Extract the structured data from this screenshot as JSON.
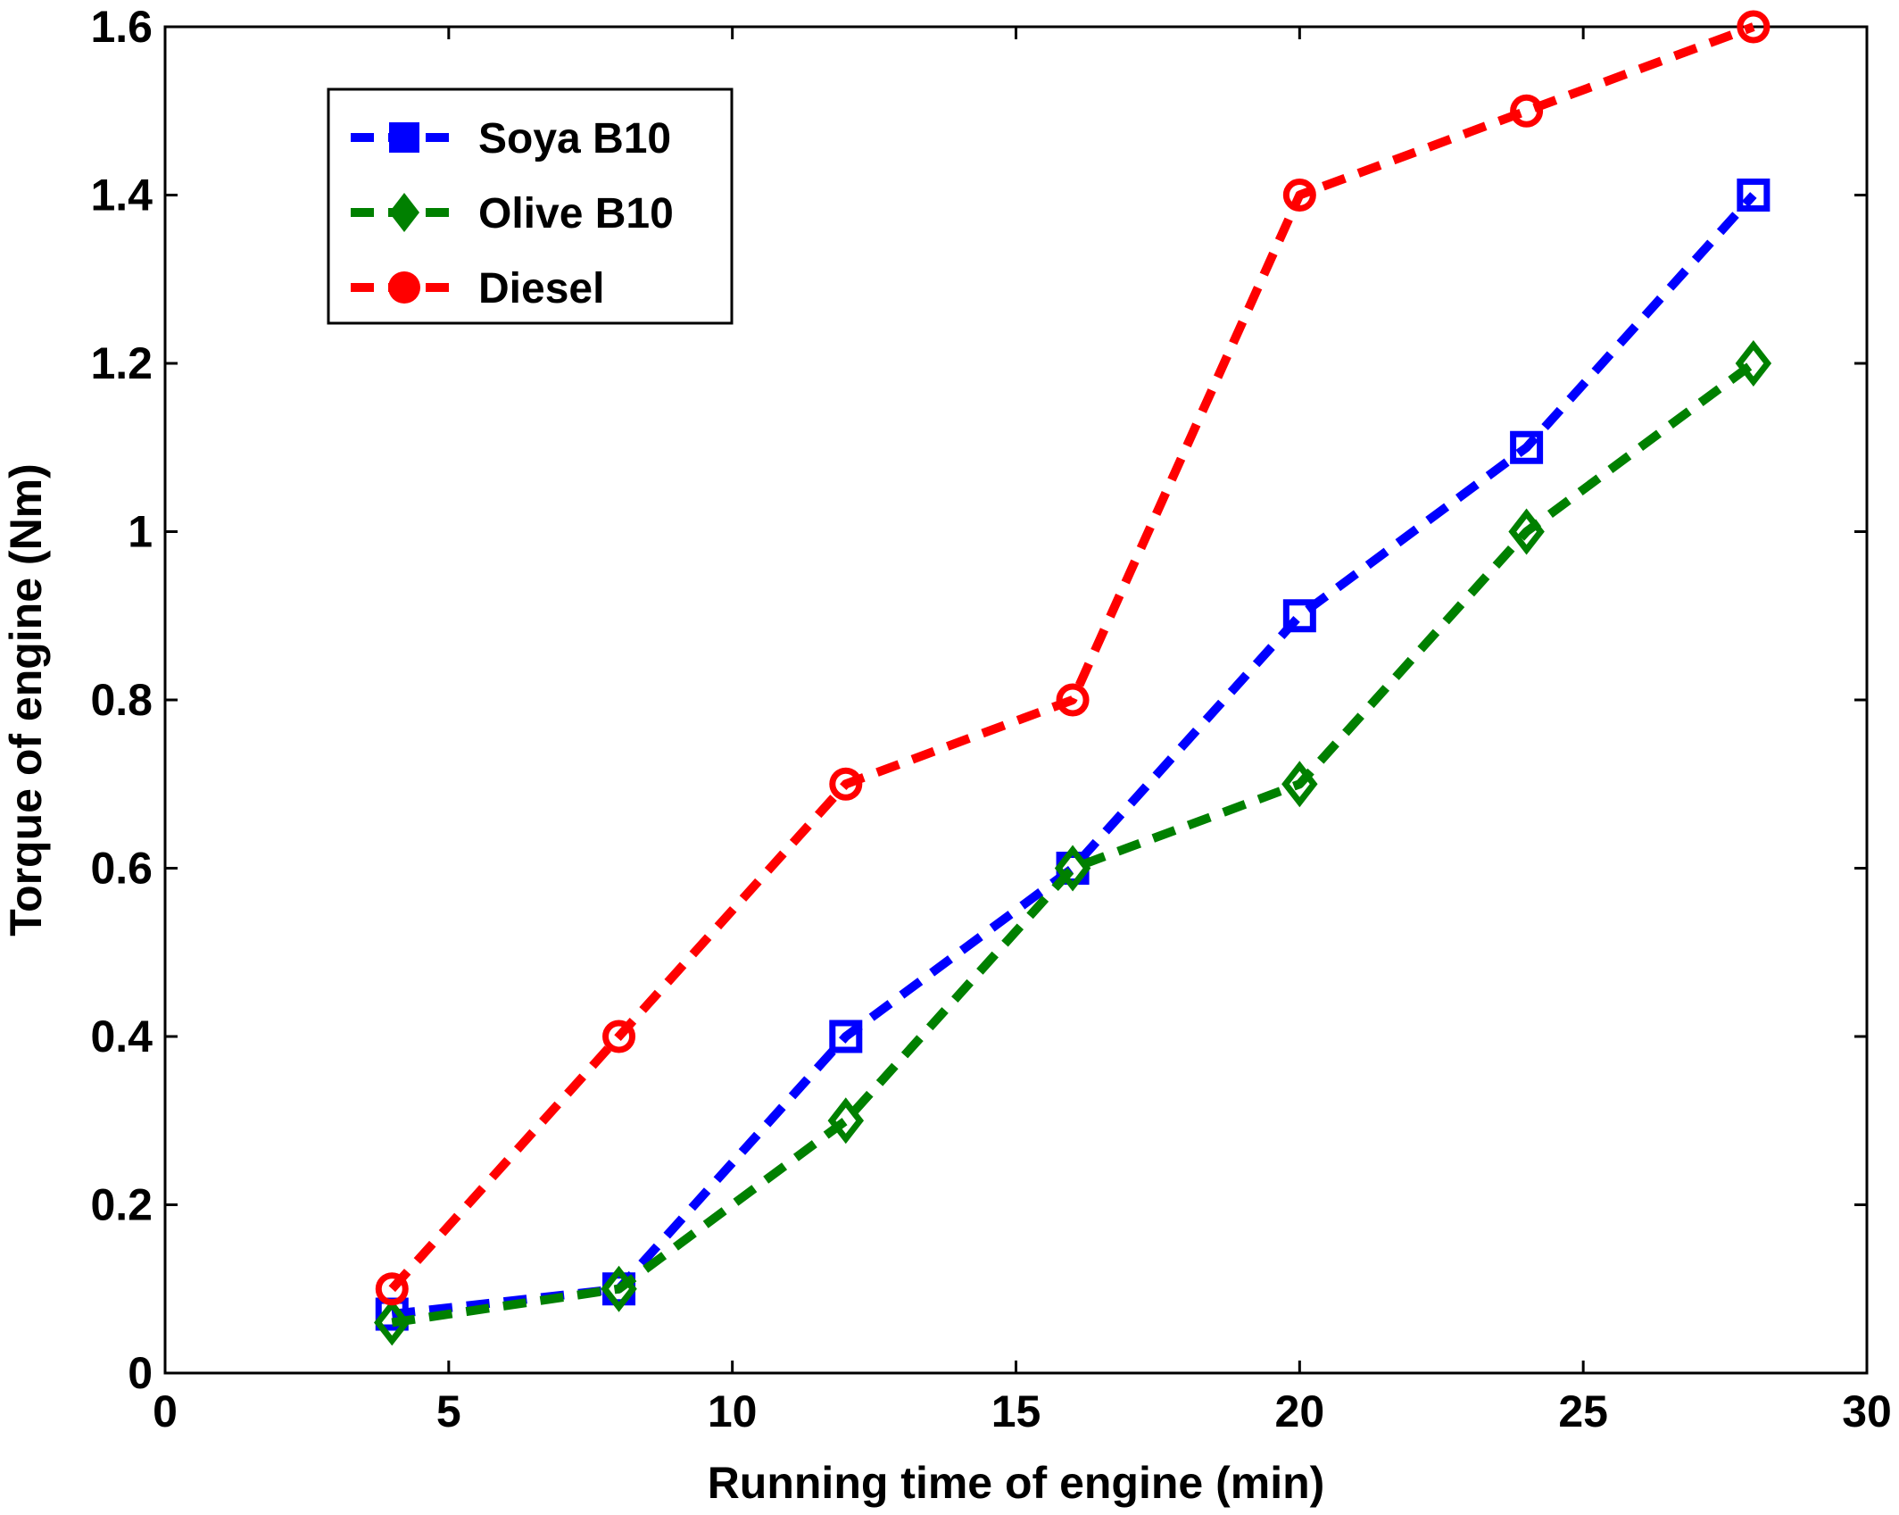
{
  "chart_data": {
    "type": "line",
    "title": "",
    "xlabel": "Running time of engine (min)",
    "ylabel": "Torque of engine (Nm)",
    "xlim": [
      0,
      30
    ],
    "ylim": [
      0,
      1.6
    ],
    "x_ticks": [
      0,
      5,
      10,
      15,
      20,
      25,
      30
    ],
    "y_ticks": [
      0,
      0.2,
      0.4,
      0.6,
      0.8,
      1,
      1.2,
      1.4,
      1.6
    ],
    "x_tick_labels": [
      "0",
      "5",
      "10",
      "15",
      "20",
      "25",
      "30"
    ],
    "y_tick_labels": [
      "0",
      "0.2",
      "0.4",
      "0.6",
      "0.8",
      "1",
      "1.2",
      "1.4",
      "1.6"
    ],
    "grid": false,
    "legend_position": "top-left",
    "line_style": "dashed",
    "x": [
      4,
      8,
      12,
      16,
      20,
      24,
      28
    ],
    "series": [
      {
        "name": "Soya B10",
        "color": "#0000ff",
        "marker": "square",
        "values": [
          0.07,
          0.1,
          0.4,
          0.6,
          0.9,
          1.1,
          1.4
        ]
      },
      {
        "name": "Olive B10",
        "color": "#008000",
        "marker": "diamond",
        "values": [
          0.06,
          0.1,
          0.3,
          0.6,
          0.7,
          1.0,
          1.2
        ]
      },
      {
        "name": "Diesel",
        "color": "#ff0000",
        "marker": "circle",
        "values": [
          0.1,
          0.4,
          0.7,
          0.8,
          1.4,
          1.5,
          1.6
        ]
      }
    ]
  }
}
